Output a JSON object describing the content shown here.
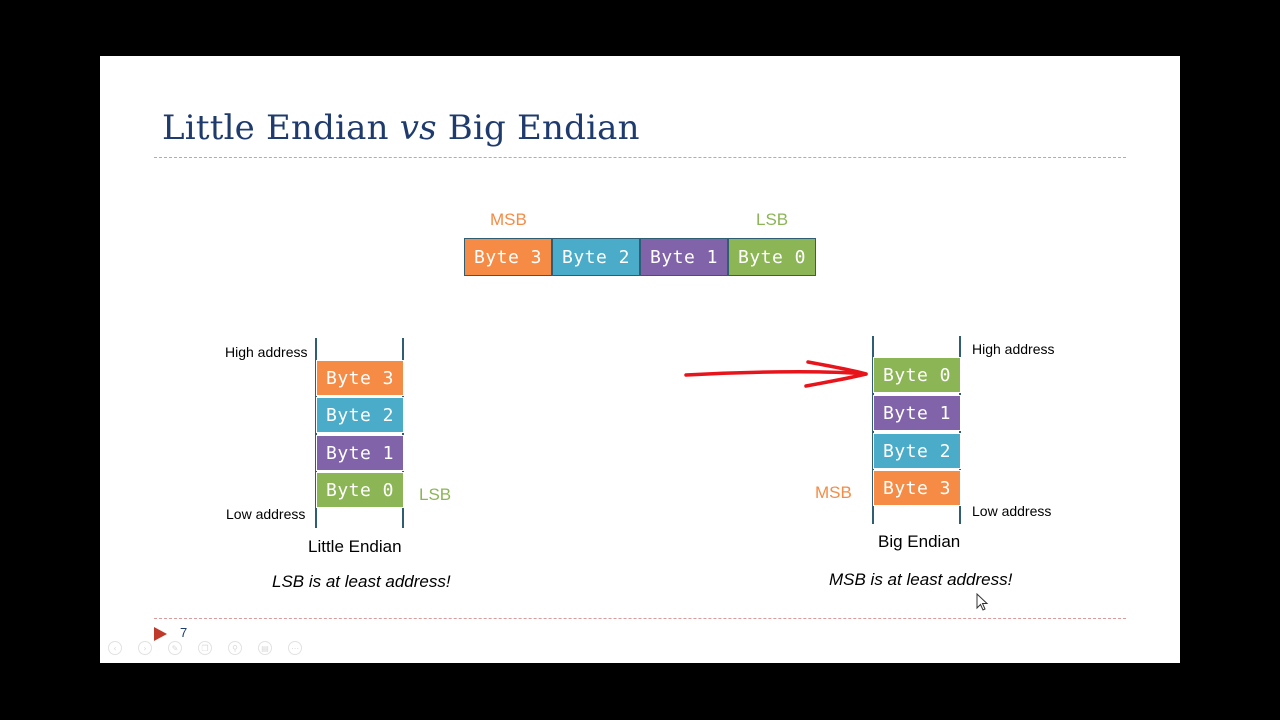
{
  "slide": {
    "title_part1": "Little Endian ",
    "title_vs": "vs",
    "title_part2": " Big Endian",
    "slide_number": "7"
  },
  "word": {
    "msb_label": "MSB",
    "lsb_label": "LSB",
    "bytes": [
      "Byte 3",
      "Byte 2",
      "Byte 1",
      "Byte 0"
    ]
  },
  "little_endian": {
    "high_address": "High address",
    "low_address": "Low address",
    "bytes": [
      "Byte 3",
      "Byte 2",
      "Byte 1",
      "Byte 0"
    ],
    "side_label": "LSB",
    "caption": "Little Endian",
    "note": "LSB is at least address!"
  },
  "big_endian": {
    "high_address": "High address",
    "low_address": "Low address",
    "bytes": [
      "Byte 0",
      "Byte 1",
      "Byte 2",
      "Byte 3"
    ],
    "side_label": "MSB",
    "caption": "Big Endian",
    "note": "MSB is at least address!"
  },
  "colors": {
    "byte3": "#f58b45",
    "byte2": "#4aacc9",
    "byte1": "#8063a8",
    "byte0": "#8cb556",
    "title": "#1f3b6e",
    "annotation_arrow": "#e8141b"
  },
  "controls": [
    "back-icon",
    "forward-icon",
    "pen-icon",
    "copy-icon",
    "zoom-icon",
    "subtitles-icon",
    "more-icon"
  ]
}
